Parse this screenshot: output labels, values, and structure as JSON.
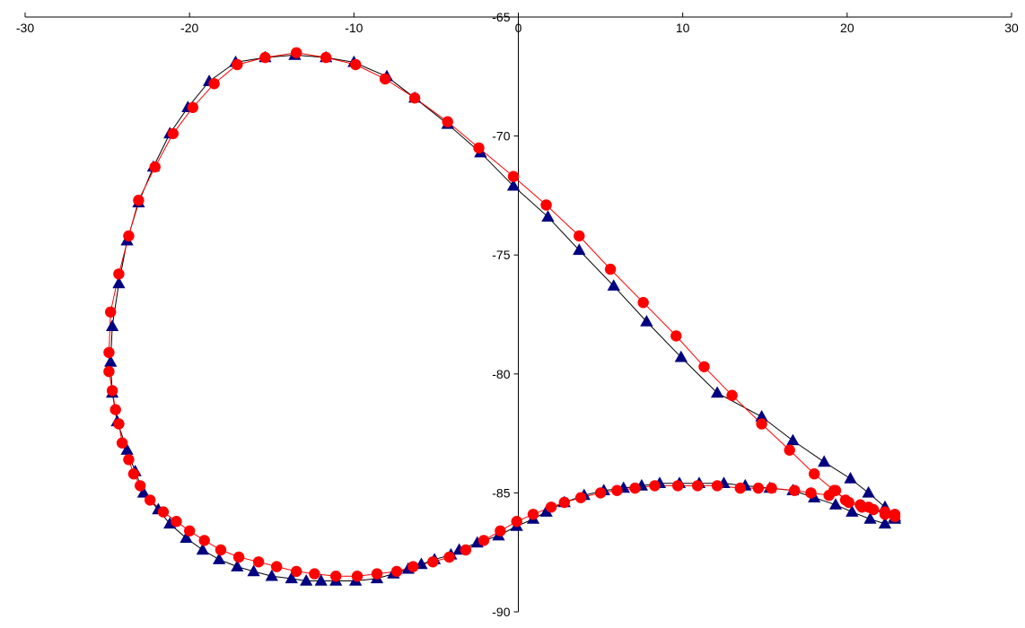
{
  "chart_data": {
    "type": "scatter",
    "title": "",
    "xlabel": "",
    "ylabel": "",
    "xlim": [
      -30,
      30
    ],
    "ylim": [
      -90,
      -65
    ],
    "x_ticks": [
      -30,
      -20,
      -10,
      0,
      10,
      20,
      30
    ],
    "y_ticks": [
      -65,
      -70,
      -75,
      -80,
      -85,
      -90
    ],
    "x_tick_labels": [
      "-30",
      "-20",
      "-10",
      "0",
      "10",
      "20",
      "30"
    ],
    "y_tick_labels": [
      "-65",
      "-70",
      "-75",
      "-80",
      "-85",
      "-90"
    ],
    "grid": false,
    "legend": "none",
    "series": [
      {
        "marker": "triangle",
        "marker_color": "#000080",
        "line_color": "#000000",
        "points": [
          [
            22.9,
            -86.1
          ],
          [
            22.3,
            -86.3
          ],
          [
            21.4,
            -86.1
          ],
          [
            20.3,
            -85.8
          ],
          [
            19.3,
            -85.5
          ],
          [
            18.0,
            -85.2
          ],
          [
            16.7,
            -84.9
          ],
          [
            15.3,
            -84.8
          ],
          [
            13.8,
            -84.7
          ],
          [
            12.5,
            -84.6
          ],
          [
            11.0,
            -84.6
          ],
          [
            9.8,
            -84.6
          ],
          [
            8.6,
            -84.6
          ],
          [
            7.5,
            -84.7
          ],
          [
            6.4,
            -84.8
          ],
          [
            5.2,
            -84.9
          ],
          [
            4.0,
            -85.1
          ],
          [
            2.8,
            -85.4
          ],
          [
            1.7,
            -85.8
          ],
          [
            0.9,
            -86.1
          ],
          [
            -0.1,
            -86.4
          ],
          [
            -1.2,
            -86.8
          ],
          [
            -2.5,
            -87.1
          ],
          [
            -3.6,
            -87.4
          ],
          [
            -4.1,
            -87.6
          ],
          [
            -5.1,
            -87.8
          ],
          [
            -5.9,
            -88.0
          ],
          [
            -6.7,
            -88.2
          ],
          [
            -7.6,
            -88.4
          ],
          [
            -8.6,
            -88.6
          ],
          [
            -9.9,
            -88.7
          ],
          [
            -11.1,
            -88.7
          ],
          [
            -12.0,
            -88.7
          ],
          [
            -12.9,
            -88.7
          ],
          [
            -13.8,
            -88.6
          ],
          [
            -15.0,
            -88.5
          ],
          [
            -16.1,
            -88.3
          ],
          [
            -17.1,
            -88.1
          ],
          [
            -18.2,
            -87.8
          ],
          [
            -19.2,
            -87.4
          ],
          [
            -20.2,
            -86.9
          ],
          [
            -21.2,
            -86.3
          ],
          [
            -21.9,
            -85.7
          ],
          [
            -22.8,
            -85.0
          ],
          [
            -23.3,
            -84.1
          ],
          [
            -23.8,
            -83.2
          ],
          [
            -24.4,
            -82.0
          ],
          [
            -24.7,
            -80.8
          ],
          [
            -24.8,
            -79.5
          ],
          [
            -24.7,
            -78.0
          ],
          [
            -24.3,
            -76.2
          ],
          [
            -23.8,
            -74.4
          ],
          [
            -23.1,
            -72.8
          ],
          [
            -22.2,
            -71.3
          ],
          [
            -21.2,
            -69.9
          ],
          [
            -20.1,
            -68.8
          ],
          [
            -18.8,
            -67.7
          ],
          [
            -17.2,
            -66.9
          ],
          [
            -15.4,
            -66.7
          ],
          [
            -13.6,
            -66.6
          ],
          [
            -11.7,
            -66.7
          ],
          [
            -10.0,
            -66.9
          ],
          [
            -8.0,
            -67.5
          ],
          [
            -6.3,
            -68.4
          ],
          [
            -4.3,
            -69.5
          ],
          [
            -2.3,
            -70.7
          ],
          [
            -0.3,
            -72.1
          ],
          [
            1.8,
            -73.4
          ],
          [
            3.7,
            -74.8
          ],
          [
            5.8,
            -76.3
          ],
          [
            7.8,
            -77.8
          ],
          [
            9.9,
            -79.3
          ],
          [
            12.1,
            -80.8
          ],
          [
            14.8,
            -81.8
          ],
          [
            16.7,
            -82.8
          ],
          [
            18.6,
            -83.7
          ],
          [
            20.2,
            -84.4
          ],
          [
            21.3,
            -85.0
          ],
          [
            22.3,
            -85.6
          ],
          [
            22.9,
            -86.0
          ]
        ]
      },
      {
        "marker": "circle",
        "marker_color": "#ff0000",
        "line_color": "#ff0000",
        "points": [
          [
            22.9,
            -85.9
          ],
          [
            22.3,
            -85.8
          ],
          [
            21.3,
            -85.6
          ],
          [
            20.8,
            -85.5
          ],
          [
            19.9,
            -85.3
          ],
          [
            19.3,
            -84.9
          ],
          [
            18.9,
            -85.1
          ],
          [
            17.8,
            -85.0
          ],
          [
            16.8,
            -84.9
          ],
          [
            15.4,
            -84.8
          ],
          [
            14.6,
            -84.8
          ],
          [
            13.5,
            -84.8
          ],
          [
            12.1,
            -84.7
          ],
          [
            10.9,
            -84.7
          ],
          [
            9.7,
            -84.7
          ],
          [
            8.3,
            -84.7
          ],
          [
            7.1,
            -84.8
          ],
          [
            6.0,
            -84.9
          ],
          [
            5.0,
            -85.0
          ],
          [
            3.8,
            -85.2
          ],
          [
            2.8,
            -85.4
          ],
          [
            2.0,
            -85.6
          ],
          [
            0.9,
            -85.9
          ],
          [
            -0.1,
            -86.2
          ],
          [
            -1.1,
            -86.6
          ],
          [
            -2.1,
            -87.0
          ],
          [
            -3.2,
            -87.4
          ],
          [
            -4.2,
            -87.7
          ],
          [
            -5.2,
            -87.9
          ],
          [
            -6.4,
            -88.1
          ],
          [
            -7.4,
            -88.3
          ],
          [
            -8.6,
            -88.4
          ],
          [
            -9.8,
            -88.5
          ],
          [
            -11.1,
            -88.5
          ],
          [
            -12.4,
            -88.4
          ],
          [
            -13.5,
            -88.3
          ],
          [
            -14.7,
            -88.1
          ],
          [
            -15.8,
            -87.9
          ],
          [
            -17.0,
            -87.7
          ],
          [
            -18.1,
            -87.4
          ],
          [
            -19.1,
            -87.0
          ],
          [
            -20.0,
            -86.6
          ],
          [
            -20.8,
            -86.2
          ],
          [
            -21.6,
            -85.8
          ],
          [
            -22.4,
            -85.3
          ],
          [
            -23.0,
            -84.7
          ],
          [
            -23.4,
            -84.2
          ],
          [
            -23.7,
            -83.6
          ],
          [
            -24.1,
            -82.9
          ],
          [
            -24.3,
            -82.1
          ],
          [
            -24.5,
            -81.5
          ],
          [
            -24.7,
            -80.7
          ],
          [
            -24.9,
            -79.9
          ],
          [
            -24.9,
            -79.1
          ],
          [
            -24.8,
            -77.4
          ],
          [
            -24.3,
            -75.8
          ],
          [
            -23.7,
            -74.2
          ],
          [
            -23.1,
            -72.7
          ],
          [
            -22.1,
            -71.3
          ],
          [
            -21.0,
            -69.9
          ],
          [
            -19.8,
            -68.8
          ],
          [
            -18.5,
            -67.8
          ],
          [
            -17.1,
            -67.0
          ],
          [
            -15.4,
            -66.7
          ],
          [
            -13.5,
            -66.5
          ],
          [
            -11.7,
            -66.7
          ],
          [
            -9.9,
            -67.0
          ],
          [
            -8.1,
            -67.6
          ],
          [
            -6.3,
            -68.4
          ],
          [
            -4.3,
            -69.4
          ],
          [
            -2.4,
            -70.5
          ],
          [
            -0.3,
            -71.7
          ],
          [
            1.7,
            -72.9
          ],
          [
            3.7,
            -74.2
          ],
          [
            5.6,
            -75.6
          ],
          [
            7.6,
            -77.0
          ],
          [
            9.6,
            -78.4
          ],
          [
            11.3,
            -79.7
          ],
          [
            13.0,
            -80.9
          ],
          [
            14.8,
            -82.1
          ],
          [
            16.5,
            -83.2
          ],
          [
            18.0,
            -84.2
          ],
          [
            19.2,
            -84.9
          ],
          [
            20.1,
            -85.4
          ],
          [
            20.9,
            -85.6
          ],
          [
            21.6,
            -85.7
          ],
          [
            22.3,
            -85.9
          ],
          [
            22.9,
            -86.0
          ]
        ]
      }
    ]
  }
}
